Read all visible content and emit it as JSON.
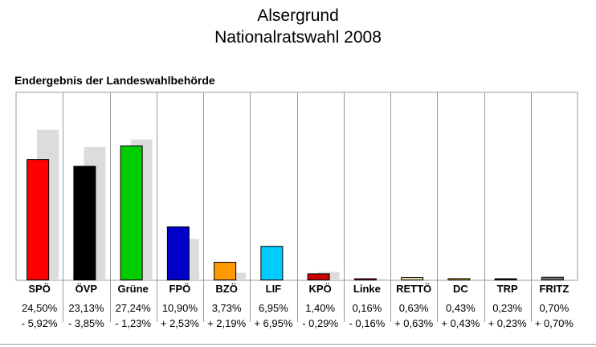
{
  "header": {
    "title": "Alsergrund",
    "subtitle": "Nationalratswahl 2008"
  },
  "chart_caption": "Endergebnis der Landeswahlbehörde",
  "chart_data": {
    "type": "bar",
    "title": "Alsergrund Nationalratswahl 2008",
    "subtitle": "Endergebnis der Landeswahlbehörde",
    "categories": [
      "SPÖ",
      "ÖVP",
      "Grüne",
      "FPÖ",
      "BZÖ",
      "LIF",
      "KPÖ",
      "Linke",
      "RETTÖ",
      "DC",
      "TRP",
      "FRITZ"
    ],
    "ylim": [
      0,
      38
    ],
    "grid": "vertical separators",
    "series": [
      {
        "values": [
          24.5,
          23.13,
          27.24,
          10.9,
          3.73,
          6.95,
          1.4,
          0.16,
          0.63,
          0.43,
          0.23,
          0.7
        ],
        "labels": [
          "24,50%",
          "23,13%",
          "27,24%",
          "10,90%",
          "3,73%",
          "6,95%",
          "1,40%",
          "0,16%",
          "0,63%",
          "0,43%",
          "0,23%",
          "0,70%"
        ],
        "colors": [
          "#ff0000",
          "#000000",
          "#00cc00",
          "#0000c8",
          "#ff9900",
          "#00ccff",
          "#cc0000",
          "#cc0066",
          "#ffeebb",
          "#ffcc33",
          "#222222",
          "#777777"
        ]
      },
      {
        "values": [
          30.42,
          26.98,
          28.47,
          8.37,
          1.54,
          0.0,
          1.69,
          0.32,
          0.0,
          0.0,
          0.0,
          0.0
        ],
        "color": "#dcdcdc"
      }
    ],
    "change_labels": [
      "- 5,92%",
      "- 3,85%",
      "- 1,23%",
      "+ 2,53%",
      "+ 2,19%",
      "+ 6,95%",
      "- 0,29%",
      "- 0,16%",
      "+ 0,63%",
      "+ 0,43%",
      "+ 0,23%",
      "+ 0,70%"
    ]
  }
}
